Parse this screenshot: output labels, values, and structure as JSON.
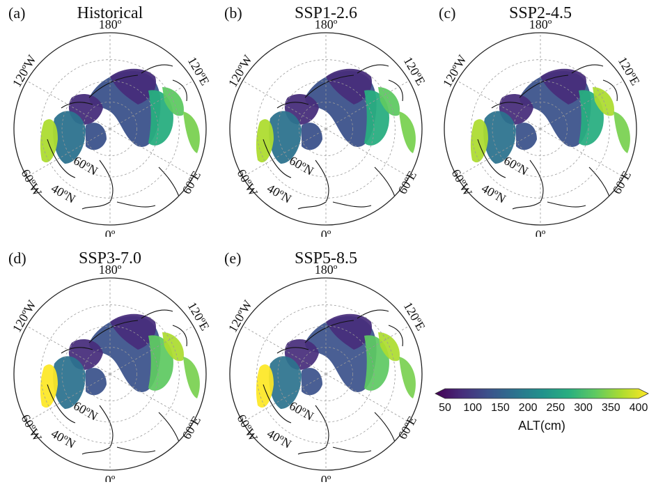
{
  "panels": [
    {
      "label": "(a)",
      "title": "Historical",
      "variant": 0
    },
    {
      "label": "(b)",
      "title": "SSP1-2.6",
      "variant": 1
    },
    {
      "label": "(c)",
      "title": "SSP2-4.5",
      "variant": 2
    },
    {
      "label": "(d)",
      "title": "SSP3-7.0",
      "variant": 3
    },
    {
      "label": "(e)",
      "title": "SSP5-8.5",
      "variant": 4
    }
  ],
  "map_labels": {
    "top": "180º",
    "bottom": "0º",
    "left_upper": "120ºW",
    "right_upper": "120ºE",
    "left_lower": "60ºW",
    "right_lower": "60ºE",
    "lat_60": "60ºN",
    "lat_40": "40ºN"
  },
  "colorbar": {
    "label": "ALT(cm)",
    "ticks": [
      "50",
      "100",
      "150",
      "200",
      "250",
      "300",
      "350",
      "400"
    ],
    "min": 50,
    "max": 400,
    "colors": [
      "#440154",
      "#472d7b",
      "#3b528b",
      "#2c728e",
      "#21918c",
      "#28ae80",
      "#5ec962",
      "#addc30",
      "#fde725"
    ]
  }
}
